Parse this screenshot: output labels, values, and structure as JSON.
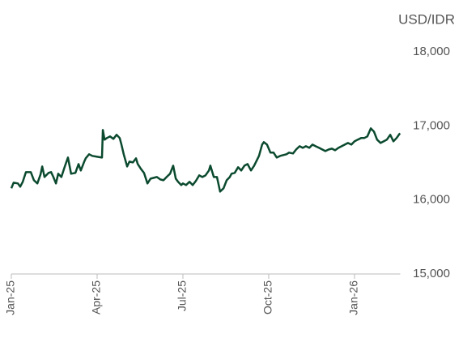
{
  "chart_data": {
    "type": "line",
    "y_label": "USD/IDR",
    "x": [
      0,
      0.08,
      0.23,
      0.31,
      0.4,
      0.51,
      0.68,
      0.79,
      0.91,
      1.02,
      1.08,
      1.16,
      1.3,
      1.39,
      1.47,
      1.56,
      1.64,
      1.75,
      1.87,
      1.98,
      2.09,
      2.24,
      2.35,
      2.43,
      2.55,
      2.6,
      2.72,
      2.83,
      3,
      3.17,
      3.2,
      3.26,
      3.34,
      3.45,
      3.57,
      3.68,
      3.79,
      3.85,
      3.93,
      4.05,
      4.13,
      4.25,
      4.36,
      4.42,
      4.53,
      4.64,
      4.76,
      4.87,
      4.98,
      5.09,
      5.21,
      5.32,
      5.43,
      5.55,
      5.66,
      5.75,
      5.83,
      5.94,
      6,
      6.11,
      6.23,
      6.34,
      6.45,
      6.57,
      6.68,
      6.79,
      6.91,
      6.96,
      7.08,
      7.19,
      7.3,
      7.42,
      7.53,
      7.64,
      7.7,
      7.81,
      7.93,
      8.04,
      8.15,
      8.26,
      8.38,
      8.49,
      8.66,
      8.77,
      8.83,
      8.94,
      9.06,
      9.17,
      9.28,
      9.4,
      9.51,
      9.62,
      9.71,
      9.85,
      9.96,
      10.08,
      10.19,
      10.3,
      10.42,
      10.53,
      10.64,
      10.76,
      10.87,
      10.98,
      11.1,
      11.21,
      11.32,
      11.44,
      11.55,
      11.66,
      11.77,
      11.89,
      12,
      12.11,
      12.23,
      12.34,
      12.45,
      12.57,
      12.68,
      12.79,
      12.91,
      13.02,
      13.13,
      13.25,
      13.36,
      13.47,
      13.59
    ],
    "values": [
      16157,
      16233,
      16223,
      16179,
      16245,
      16376,
      16376,
      16266,
      16223,
      16343,
      16452,
      16310,
      16365,
      16376,
      16310,
      16223,
      16354,
      16310,
      16452,
      16573,
      16354,
      16365,
      16485,
      16398,
      16518,
      16562,
      16617,
      16595,
      16584,
      16573,
      16945,
      16814,
      16836,
      16858,
      16825,
      16880,
      16836,
      16748,
      16617,
      16452,
      16518,
      16507,
      16562,
      16485,
      16420,
      16365,
      16223,
      16288,
      16299,
      16310,
      16277,
      16266,
      16310,
      16354,
      16463,
      16288,
      16245,
      16201,
      16223,
      16201,
      16245,
      16201,
      16255,
      16332,
      16310,
      16332,
      16398,
      16463,
      16310,
      16310,
      16113,
      16157,
      16266,
      16310,
      16354,
      16365,
      16442,
      16398,
      16463,
      16485,
      16398,
      16463,
      16595,
      16748,
      16781,
      16748,
      16639,
      16639,
      16573,
      16595,
      16606,
      16617,
      16639,
      16628,
      16682,
      16726,
      16704,
      16726,
      16704,
      16748,
      16726,
      16704,
      16682,
      16660,
      16682,
      16693,
      16671,
      16704,
      16726,
      16748,
      16770,
      16748,
      16792,
      16814,
      16836,
      16836,
      16858,
      16967,
      16923,
      16814,
      16770,
      16792,
      16814,
      16880,
      16792,
      16836,
      16901
    ],
    "color": "#0b4a2f",
    "xlim": [
      0,
      13.6
    ],
    "xticks": [
      {
        "value": 0,
        "label": "Jan-25"
      },
      {
        "value": 3,
        "label": "Apr-25"
      },
      {
        "value": 6,
        "label": "Jul-25"
      },
      {
        "value": 9,
        "label": "Oct-25"
      },
      {
        "value": 12,
        "label": "Jan-26"
      }
    ],
    "ylim": [
      15000,
      18000
    ],
    "yticks": [
      {
        "value": 15000,
        "label": "15,000"
      },
      {
        "value": 16000,
        "label": "16,000"
      },
      {
        "value": 17000,
        "label": "17,000"
      },
      {
        "value": 18000,
        "label": "18,000"
      }
    ],
    "grid": false
  }
}
